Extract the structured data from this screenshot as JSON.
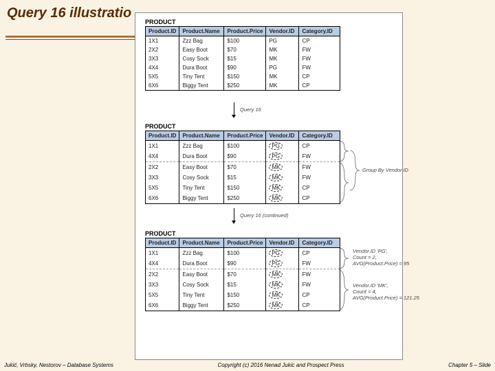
{
  "slide": {
    "title": "Query 16 illustratio",
    "footer_left": "Jukić, Vrbsky, Nestorov – Database Systems",
    "footer_center": "Copyright (c) 2016 Nenad Jukic and Prospect Press",
    "footer_right": "Chapter 5 – Slide"
  },
  "diagram": {
    "table_label": "PRODUCT",
    "columns": [
      "Product.ID",
      "Product.Name",
      "Product.Price",
      "Vendor.ID",
      "Category.ID"
    ],
    "arrow1_label": "Query 16",
    "arrow2_label": "Query 16 (continued)",
    "group_label": "Group By Vendor.ID",
    "annot1_l1": "Vendor.ID 'PG',",
    "annot1_l2": "Count = 2,",
    "annot1_l3": "AVG(Product.Price) = 95",
    "annot2_l1": "Vendor.ID 'MK',",
    "annot2_l2": "Count = 4,",
    "annot2_l3": "AVG(Product.Price) = 121.25",
    "colors": {
      "header_bg": "#b8cce4",
      "page_bg": "#faf3e4",
      "title_color": "#5a2a00"
    },
    "table1": {
      "rows": [
        [
          "1X1",
          "Zzz Bag",
          "$100",
          "PG",
          "CP"
        ],
        [
          "2X2",
          "Easy Boot",
          "$70",
          "MK",
          "FW"
        ],
        [
          "3X3",
          "Cosy Sock",
          "$15",
          "MK",
          "FW"
        ],
        [
          "4X4",
          "Dura Boot",
          "$90",
          "PG",
          "FW"
        ],
        [
          "5X5",
          "Tiny Tent",
          "$150",
          "MK",
          "CP"
        ],
        [
          "6X6",
          "Biggy Tent",
          "$250",
          "MK",
          "CP"
        ]
      ]
    },
    "table2": {
      "rows": [
        [
          "1X1",
          "Zzz Bag",
          "$100",
          "PG",
          "CP"
        ],
        [
          "4X4",
          "Dura Boot",
          "$90",
          "PG",
          "FW"
        ],
        [
          "2X2",
          "Easy Boot",
          "$70",
          "MK",
          "FW"
        ],
        [
          "3X3",
          "Cosy Sock",
          "$15",
          "MK",
          "FW"
        ],
        [
          "5X5",
          "Tiny Tent",
          "$150",
          "MK",
          "CP"
        ],
        [
          "6X6",
          "Biggy Tent",
          "$250",
          "MK",
          "CP"
        ]
      ],
      "circled_vendor": true,
      "group_split_after": 2
    },
    "table3": {
      "rows": [
        [
          "1X1",
          "Zzz Bag",
          "$100",
          "PG",
          "CP"
        ],
        [
          "4X4",
          "Dura Boot",
          "$90",
          "PG",
          "FW"
        ],
        [
          "2X2",
          "Easy Boot",
          "$70",
          "MK",
          "FW"
        ],
        [
          "3X3",
          "Cosy Sock",
          "$15",
          "MK",
          "FW"
        ],
        [
          "5X5",
          "Tiny Tent",
          "$150",
          "MK",
          "CP"
        ],
        [
          "6X6",
          "Biggy Tent",
          "$250",
          "MK",
          "CP"
        ]
      ],
      "circled_vendor": true,
      "group_split_after": 2
    }
  }
}
